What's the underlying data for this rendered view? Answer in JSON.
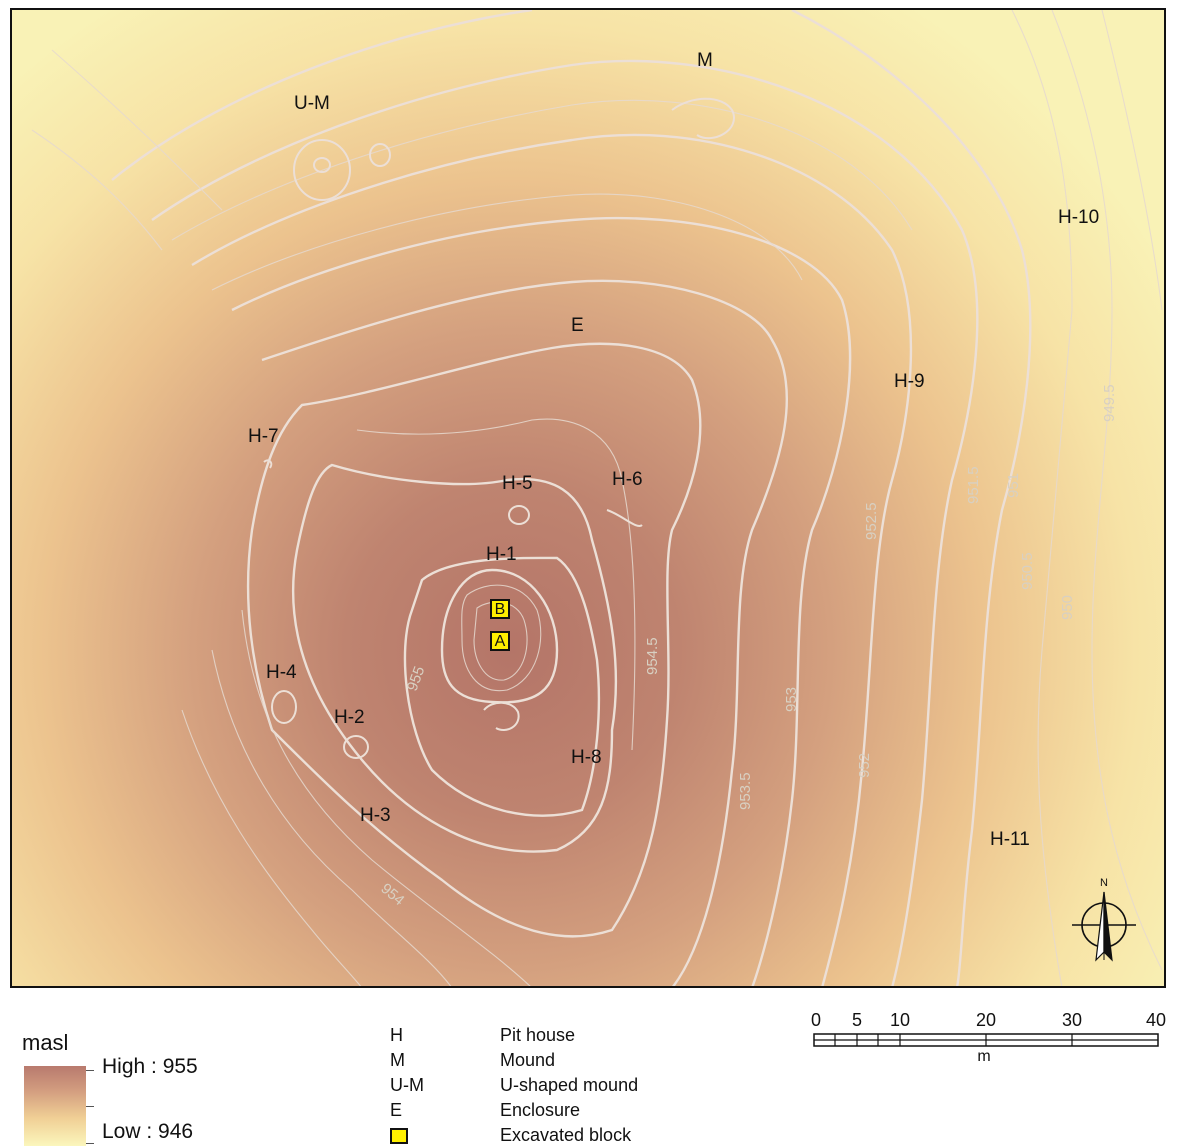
{
  "map": {
    "site_labels": {
      "um": "U-M",
      "m": "M",
      "h10": "H-10",
      "e": "E",
      "h9": "H-9",
      "h7": "H-7",
      "h5": "H-5",
      "h6": "H-6",
      "h1": "H-1",
      "h4": "H-4",
      "h2": "H-2",
      "h8": "H-8",
      "h3": "H-3",
      "h11": "H-11"
    },
    "blocks": {
      "a": "A",
      "b": "B"
    },
    "contour_labels": [
      "949.5",
      "951",
      "951.5",
      "952.5",
      "950.5",
      "950",
      "955",
      "954.5",
      "953",
      "953.5",
      "952",
      "954"
    ],
    "north_arrow_label": "N"
  },
  "legend": {
    "elevation": {
      "title": "masl",
      "high": "High : 955",
      "low": "Low : 946",
      "high_value": 955,
      "low_value": 946,
      "ramp_colors": [
        "#b87a6e",
        "#d29c7f",
        "#f0cf95",
        "#fbf6bc"
      ]
    },
    "abbreviations": [
      {
        "key": "H",
        "desc": "Pit house"
      },
      {
        "key": "M",
        "desc": "Mound"
      },
      {
        "key": "U-M",
        "desc": "U-shaped mound"
      },
      {
        "key": "E",
        "desc": "Enclosure"
      }
    ],
    "excavated_block": "Excavated block",
    "excavated_color": "#ffef00"
  },
  "scale_bar": {
    "ticks": [
      "0",
      "5",
      "10",
      "20",
      "30",
      "40"
    ],
    "unit": "m"
  }
}
